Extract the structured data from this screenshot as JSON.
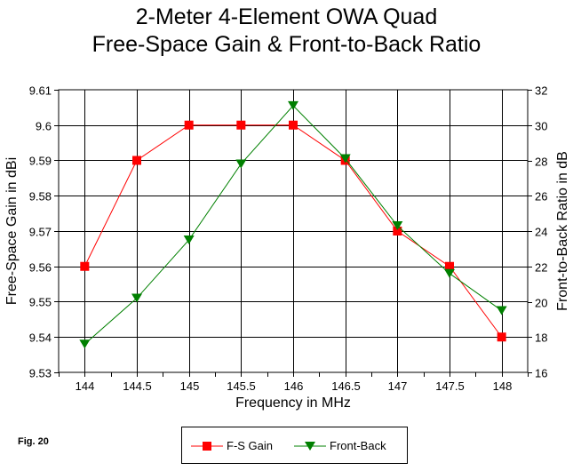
{
  "chart_data": {
    "type": "line",
    "title": "2-Meter 4-Element OWA Quad",
    "subtitle": "Free-Space Gain & Front-to-Back Ratio",
    "xlabel": "Frequency in MHz",
    "ylabel": "Free-Space Gain in dBi",
    "y2label": "Front-to-Back Ratio in dB",
    "x": [
      144,
      144.5,
      145,
      145.5,
      146,
      146.5,
      147,
      147.5,
      148
    ],
    "x_tick_labels": [
      "144",
      "144.5",
      "145",
      "145.5",
      "146",
      "146.5",
      "147",
      "147.5",
      "148"
    ],
    "xlim": [
      143.75,
      148.25
    ],
    "ylim": [
      9.53,
      9.61
    ],
    "y_ticks": [
      9.53,
      9.54,
      9.55,
      9.56,
      9.57,
      9.58,
      9.59,
      9.6,
      9.61
    ],
    "y_tick_labels": [
      "9.53",
      "9.54",
      "9.55",
      "9.56",
      "9.57",
      "9.58",
      "9.59",
      "9.6",
      "9.61"
    ],
    "y2lim": [
      16,
      32
    ],
    "y2_ticks": [
      16,
      18,
      20,
      22,
      24,
      26,
      28,
      30,
      32
    ],
    "y2_tick_labels": [
      "16",
      "18",
      "20",
      "22",
      "24",
      "26",
      "28",
      "30",
      "32"
    ],
    "grid": true,
    "legend_position": "bottom-center",
    "series": [
      {
        "name": "F-S Gain",
        "axis": "left",
        "color": "#ff0000",
        "marker": "square",
        "values": [
          9.56,
          9.59,
          9.6,
          9.6,
          9.6,
          9.59,
          9.57,
          9.56,
          9.54
        ]
      },
      {
        "name": "Front-Back",
        "axis": "right",
        "color": "#008000",
        "marker": "triangle-down",
        "values": [
          17.6,
          20.2,
          23.5,
          27.8,
          31.1,
          28.1,
          24.3,
          21.6,
          19.5
        ]
      }
    ]
  },
  "figure_label": "Fig. 20"
}
